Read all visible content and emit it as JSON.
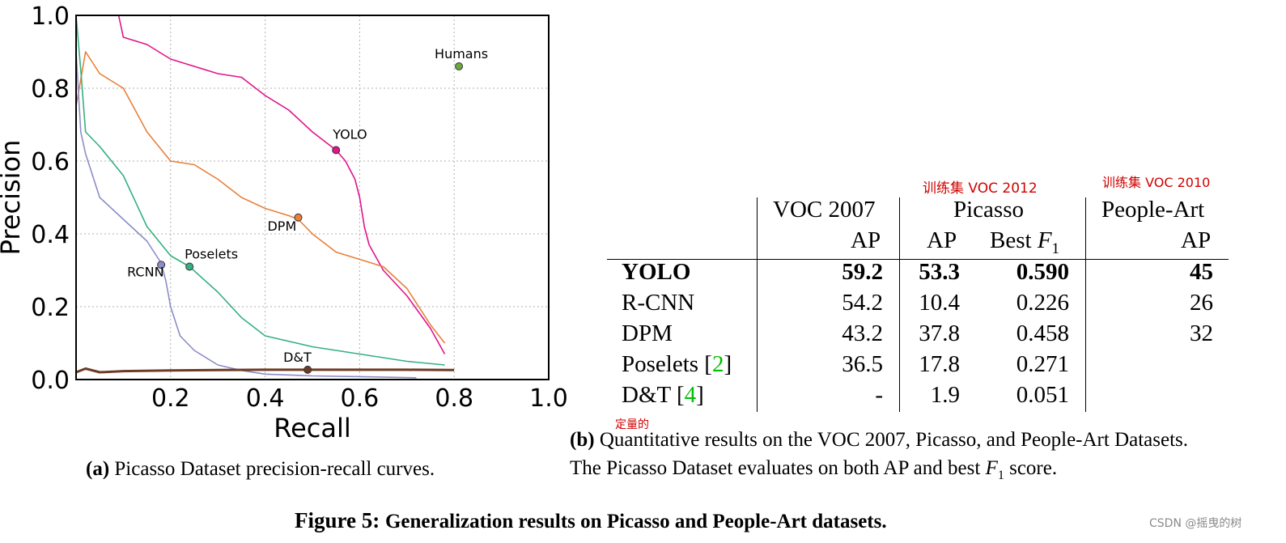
{
  "chart_data": {
    "type": "line",
    "xlabel": "Recall",
    "ylabel": "Precision",
    "xlim": [
      0.0,
      1.0
    ],
    "ylim": [
      0.0,
      1.0
    ],
    "xticks": [
      "0.2",
      "0.4",
      "0.6",
      "0.8",
      "1.0"
    ],
    "yticks": [
      "0.0",
      "0.2",
      "0.4",
      "0.6",
      "0.8",
      "1.0"
    ],
    "grid": true,
    "series": [
      {
        "name": "YOLO",
        "color": "#e0148c",
        "x": [
          0.0,
          0.09,
          0.1,
          0.15,
          0.2,
          0.25,
          0.3,
          0.35,
          0.4,
          0.45,
          0.5,
          0.55,
          0.57,
          0.59,
          0.6,
          0.61,
          0.62,
          0.65,
          0.7,
          0.75,
          0.78
        ],
        "y": [
          1.0,
          1.0,
          0.94,
          0.92,
          0.88,
          0.86,
          0.84,
          0.83,
          0.78,
          0.74,
          0.68,
          0.63,
          0.6,
          0.55,
          0.5,
          0.42,
          0.37,
          0.3,
          0.23,
          0.14,
          0.07
        ]
      },
      {
        "name": "DPM",
        "color": "#e8803a",
        "x": [
          0.0,
          0.02,
          0.05,
          0.1,
          0.15,
          0.2,
          0.25,
          0.3,
          0.35,
          0.4,
          0.45,
          0.47,
          0.5,
          0.55,
          0.6,
          0.65,
          0.7,
          0.75,
          0.78
        ],
        "y": [
          0.75,
          0.9,
          0.84,
          0.8,
          0.68,
          0.6,
          0.59,
          0.55,
          0.5,
          0.47,
          0.45,
          0.44,
          0.4,
          0.35,
          0.33,
          0.31,
          0.25,
          0.15,
          0.1
        ]
      },
      {
        "name": "Poselets",
        "color": "#35b080",
        "x": [
          0.0,
          0.01,
          0.02,
          0.05,
          0.1,
          0.15,
          0.2,
          0.24,
          0.3,
          0.35,
          0.4,
          0.5,
          0.6,
          0.7,
          0.78
        ],
        "y": [
          1.0,
          0.85,
          0.68,
          0.64,
          0.56,
          0.42,
          0.34,
          0.31,
          0.24,
          0.17,
          0.12,
          0.09,
          0.07,
          0.05,
          0.04
        ]
      },
      {
        "name": "RCNN",
        "color": "#8c8cc8",
        "x": [
          0.0,
          0.01,
          0.02,
          0.05,
          0.1,
          0.15,
          0.18,
          0.19,
          0.2,
          0.22,
          0.25,
          0.3,
          0.35,
          0.4,
          0.5,
          0.6,
          0.72
        ],
        "y": [
          0.9,
          0.68,
          0.62,
          0.5,
          0.44,
          0.38,
          0.32,
          0.27,
          0.2,
          0.12,
          0.08,
          0.04,
          0.025,
          0.015,
          0.01,
          0.008,
          0.005
        ]
      },
      {
        "name": "D&T",
        "color": "#6e3a24",
        "x": [
          0.0,
          0.02,
          0.05,
          0.1,
          0.2,
          0.3,
          0.4,
          0.49,
          0.6,
          0.7,
          0.8
        ],
        "y": [
          0.02,
          0.03,
          0.02,
          0.023,
          0.025,
          0.026,
          0.027,
          0.027,
          0.027,
          0.027,
          0.026
        ]
      }
    ],
    "points": [
      {
        "label": "Humans",
        "x": 0.81,
        "y": 0.86,
        "color": "#6aaa3c"
      },
      {
        "label": "YOLO",
        "x": 0.55,
        "y": 0.63,
        "color": "#e0148c"
      },
      {
        "label": "DPM",
        "x": 0.47,
        "y": 0.445,
        "color": "#e8803a"
      },
      {
        "label": "Poselets",
        "x": 0.24,
        "y": 0.31,
        "color": "#35b080"
      },
      {
        "label": "RCNN",
        "x": 0.18,
        "y": 0.315,
        "color": "#8c8cc8"
      },
      {
        "label": "D&T",
        "x": 0.49,
        "y": 0.027,
        "color": "#6e3a24"
      }
    ]
  },
  "table": {
    "headers": {
      "voc2007": "VOC 2007",
      "picasso": "Picasso",
      "people_art": "People-Art",
      "ap1": "AP",
      "ap2": "AP",
      "bestf1": "Best",
      "f1": "F",
      "f1sub": "1",
      "ap3": "AP"
    },
    "rows": [
      {
        "name": "YOLO",
        "ref": "",
        "voc": "59.2",
        "pap": "53.3",
        "pf1": "0.590",
        "art": "45"
      },
      {
        "name": "R-CNN",
        "ref": "",
        "voc": "54.2",
        "pap": "10.4",
        "pf1": "0.226",
        "art": "26"
      },
      {
        "name": "DPM",
        "ref": "",
        "voc": "43.2",
        "pap": "37.8",
        "pf1": "0.458",
        "art": "32"
      },
      {
        "name": "Poselets [",
        "ref": "2",
        "voc": "36.5",
        "pap": "17.8",
        "pf1": "0.271",
        "art": ""
      },
      {
        "name": "D&T [",
        "ref": "4",
        "voc": "-",
        "pap": "1.9",
        "pf1": "0.051",
        "art": ""
      }
    ],
    "close_bracket": "]"
  },
  "annotations": {
    "picasso_note": "训练集 VOC 2012",
    "peopleart_note": "训练集 VOC 2010",
    "quant_note": "定量的"
  },
  "captions": {
    "a_label": "(a)",
    "a_text": "Picasso Dataset precision-recall curves.",
    "b_label": "(b)",
    "b_text1": "Quantitative results on the VOC 2007, Picasso, and People-Art Datasets.",
    "b_text2a": "The Picasso Dataset evaluates on both AP and best ",
    "b_f": "F",
    "b_sub": "1",
    "b_text2b": " score.",
    "figure": "Figure 5:",
    "figure_text": "Generalization results on Picasso and People-Art datasets."
  },
  "watermark": "CSDN @摇曳的树"
}
